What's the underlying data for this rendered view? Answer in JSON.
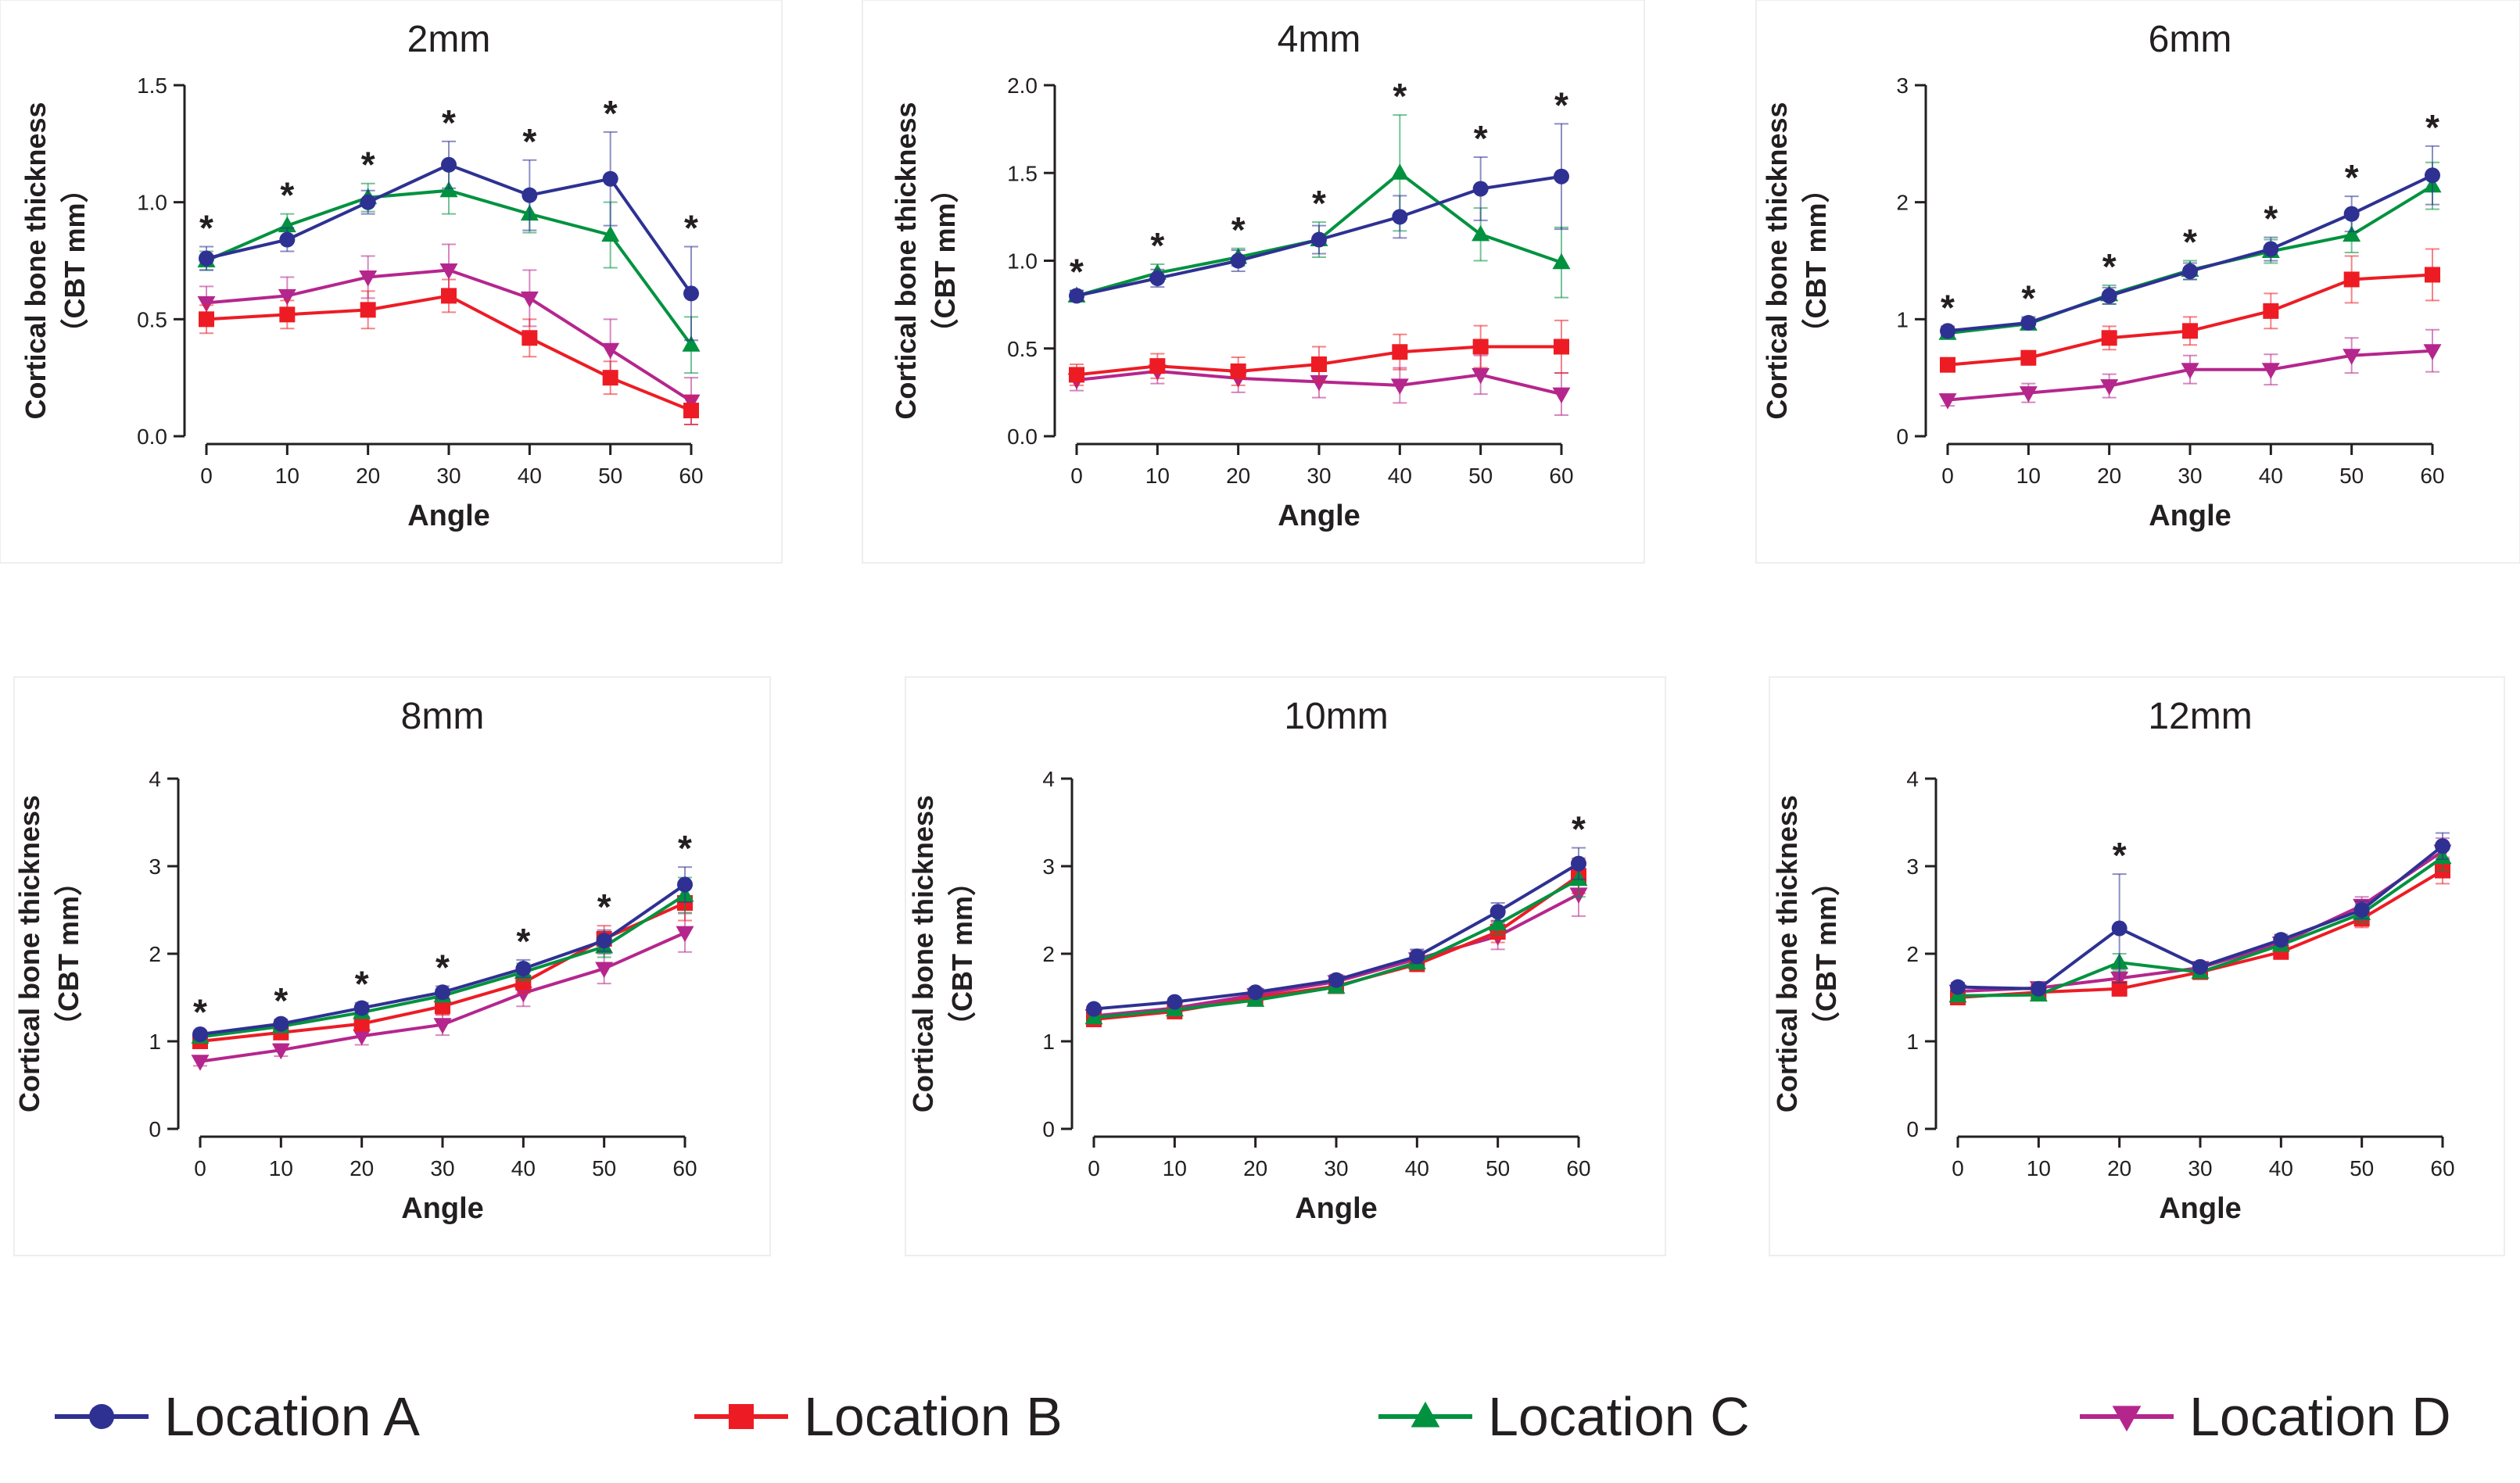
{
  "series_styles": [
    {
      "name": "Location A",
      "color": "#2e3192",
      "marker": "circle"
    },
    {
      "name": "Location B",
      "color": "#ed1c24",
      "marker": "square"
    },
    {
      "name": "Location C",
      "color": "#00923f",
      "marker": "triangle-up"
    },
    {
      "name": "Location D",
      "color": "#b5268d",
      "marker": "triangle-down"
    }
  ],
  "legend": {
    "placement": "bottom",
    "entries": [
      "Location A",
      "Location B",
      "Location C",
      "Location D"
    ]
  },
  "chart_data": [
    {
      "type": "line",
      "title": "2mm",
      "xlabel": "Angle",
      "ylabel": "Cortical bone thickness",
      "ylabel2": "（CBT mm）",
      "x": [
        0,
        10,
        20,
        30,
        40,
        50,
        60
      ],
      "ylim": [
        0,
        1.5
      ],
      "yticks": [
        0.0,
        0.5,
        1.0,
        1.5
      ],
      "yticklabels": [
        "0.0",
        "0.5",
        "1.0",
        "1.5"
      ],
      "significance": [
        "*",
        "*",
        "*",
        "*",
        "*",
        "*",
        "*"
      ],
      "series": [
        {
          "name": "Location A",
          "values": [
            0.76,
            0.84,
            1.0,
            1.16,
            1.03,
            1.1,
            0.61
          ],
          "error": [
            0.05,
            0.05,
            0.05,
            0.1,
            0.15,
            0.2,
            0.2
          ]
        },
        {
          "name": "Location B",
          "values": [
            0.5,
            0.52,
            0.54,
            0.6,
            0.42,
            0.25,
            0.11
          ],
          "error": [
            0.06,
            0.06,
            0.08,
            0.07,
            0.08,
            0.07,
            0.06
          ]
        },
        {
          "name": "Location C",
          "values": [
            0.75,
            0.9,
            1.02,
            1.05,
            0.95,
            0.86,
            0.39
          ],
          "error": [
            0.04,
            0.05,
            0.06,
            0.1,
            0.08,
            0.14,
            0.12
          ]
        },
        {
          "name": "Location D",
          "values": [
            0.57,
            0.6,
            0.68,
            0.71,
            0.59,
            0.37,
            0.15
          ],
          "error": [
            0.07,
            0.08,
            0.09,
            0.11,
            0.12,
            0.13,
            0.1
          ]
        }
      ]
    },
    {
      "type": "line",
      "title": "4mm",
      "xlabel": "Angle",
      "ylabel": "Cortical bone thickness",
      "ylabel2": "（CBT mm）",
      "x": [
        0,
        10,
        20,
        30,
        40,
        50,
        60
      ],
      "ylim": [
        0,
        2.0
      ],
      "yticks": [
        0.0,
        0.5,
        1.0,
        1.5,
        2.0
      ],
      "yticklabels": [
        "0.0",
        "0.5",
        "1.0",
        "1.5",
        "2.0"
      ],
      "significance": [
        "*",
        "*",
        "*",
        "*",
        "*",
        "*",
        "*"
      ],
      "series": [
        {
          "name": "Location A",
          "values": [
            0.8,
            0.9,
            1.0,
            1.12,
            1.25,
            1.41,
            1.48
          ],
          "error": [
            0.03,
            0.05,
            0.06,
            0.08,
            0.12,
            0.18,
            0.3
          ]
        },
        {
          "name": "Location B",
          "values": [
            0.35,
            0.4,
            0.37,
            0.41,
            0.48,
            0.51,
            0.51
          ],
          "error": [
            0.06,
            0.07,
            0.08,
            0.1,
            0.1,
            0.12,
            0.15
          ]
        },
        {
          "name": "Location C",
          "values": [
            0.8,
            0.93,
            1.02,
            1.12,
            1.5,
            1.15,
            0.99
          ],
          "error": [
            0.03,
            0.05,
            0.05,
            0.1,
            0.33,
            0.15,
            0.2
          ]
        },
        {
          "name": "Location D",
          "values": [
            0.32,
            0.37,
            0.33,
            0.31,
            0.29,
            0.35,
            0.24
          ],
          "error": [
            0.06,
            0.07,
            0.08,
            0.09,
            0.1,
            0.11,
            0.12
          ]
        }
      ]
    },
    {
      "type": "line",
      "title": "6mm",
      "xlabel": "Angle",
      "ylabel": "Cortical bone thickness",
      "ylabel2": "（CBT mm）",
      "x": [
        0,
        10,
        20,
        30,
        40,
        50,
        60
      ],
      "ylim": [
        0,
        3
      ],
      "yticks": [
        0,
        1,
        2,
        3
      ],
      "yticklabels": [
        "0",
        "1",
        "2",
        "3"
      ],
      "significance": [
        "*",
        "*",
        "*",
        "*",
        "*",
        "*",
        "*"
      ],
      "series": [
        {
          "name": "Location A",
          "values": [
            0.9,
            0.97,
            1.2,
            1.41,
            1.6,
            1.9,
            2.23
          ],
          "error": [
            0.04,
            0.05,
            0.07,
            0.07,
            0.1,
            0.15,
            0.25
          ]
        },
        {
          "name": "Location B",
          "values": [
            0.61,
            0.67,
            0.84,
            0.9,
            1.07,
            1.34,
            1.38
          ],
          "error": [
            0.05,
            0.06,
            0.1,
            0.12,
            0.15,
            0.2,
            0.22
          ]
        },
        {
          "name": "Location C",
          "values": [
            0.88,
            0.96,
            1.21,
            1.42,
            1.58,
            1.72,
            2.14
          ],
          "error": [
            0.04,
            0.05,
            0.08,
            0.08,
            0.1,
            0.15,
            0.2
          ]
        },
        {
          "name": "Location D",
          "values": [
            0.31,
            0.37,
            0.43,
            0.57,
            0.57,
            0.69,
            0.73
          ],
          "error": [
            0.05,
            0.08,
            0.1,
            0.12,
            0.13,
            0.15,
            0.18
          ]
        }
      ]
    },
    {
      "type": "line",
      "title": "8mm",
      "xlabel": "Angle",
      "ylabel": "Cortical bone thickness",
      "ylabel2": "（CBT mm）",
      "x": [
        0,
        10,
        20,
        30,
        40,
        50,
        60
      ],
      "ylim": [
        0,
        4
      ],
      "yticks": [
        0,
        1,
        2,
        3,
        4
      ],
      "yticklabels": [
        "0",
        "1",
        "2",
        "3",
        "4"
      ],
      "significance": [
        "*",
        "*",
        "*",
        "*",
        "*",
        "*",
        "*"
      ],
      "series": [
        {
          "name": "Location A",
          "values": [
            1.08,
            1.2,
            1.38,
            1.56,
            1.83,
            2.15,
            2.79
          ],
          "error": [
            0.04,
            0.05,
            0.06,
            0.07,
            0.1,
            0.12,
            0.2
          ]
        },
        {
          "name": "Location B",
          "values": [
            1.0,
            1.1,
            1.2,
            1.4,
            1.67,
            2.17,
            2.58
          ],
          "error": [
            0.05,
            0.06,
            0.08,
            0.1,
            0.12,
            0.15,
            0.2
          ]
        },
        {
          "name": "Location C",
          "values": [
            1.05,
            1.17,
            1.33,
            1.52,
            1.79,
            2.08,
            2.67
          ],
          "error": [
            0.04,
            0.05,
            0.06,
            0.07,
            0.1,
            0.12,
            0.2
          ]
        },
        {
          "name": "Location D",
          "values": [
            0.77,
            0.9,
            1.06,
            1.19,
            1.55,
            1.83,
            2.24
          ],
          "error": [
            0.05,
            0.07,
            0.1,
            0.12,
            0.15,
            0.17,
            0.22
          ]
        }
      ]
    },
    {
      "type": "line",
      "title": "10mm",
      "xlabel": "Angle",
      "ylabel": "Cortical bone thickness",
      "ylabel2": "（CBT mm）",
      "x": [
        0,
        10,
        20,
        30,
        40,
        50,
        60
      ],
      "ylim": [
        0,
        4
      ],
      "yticks": [
        0,
        1,
        2,
        3,
        4
      ],
      "yticklabels": [
        "0",
        "1",
        "2",
        "3",
        "4"
      ],
      "significance": [
        "",
        "",
        "",
        "",
        "",
        "",
        "*"
      ],
      "series": [
        {
          "name": "Location A",
          "values": [
            1.37,
            1.45,
            1.56,
            1.7,
            1.97,
            2.48,
            3.03
          ],
          "error": [
            0.03,
            0.04,
            0.05,
            0.06,
            0.08,
            0.1,
            0.18
          ]
        },
        {
          "name": "Location B",
          "values": [
            1.25,
            1.34,
            1.5,
            1.63,
            1.88,
            2.25,
            2.89
          ],
          "error": [
            0.03,
            0.04,
            0.05,
            0.06,
            0.08,
            0.12,
            0.2
          ]
        },
        {
          "name": "Location C",
          "values": [
            1.27,
            1.36,
            1.47,
            1.62,
            1.9,
            2.34,
            2.85
          ],
          "error": [
            0.03,
            0.04,
            0.05,
            0.06,
            0.08,
            0.12,
            0.2
          ]
        },
        {
          "name": "Location D",
          "values": [
            1.29,
            1.38,
            1.53,
            1.68,
            1.94,
            2.2,
            2.68
          ],
          "error": [
            0.03,
            0.04,
            0.05,
            0.06,
            0.1,
            0.15,
            0.25
          ]
        }
      ]
    },
    {
      "type": "line",
      "title": "12mm",
      "xlabel": "Angle",
      "ylabel": "Cortical bone thickness",
      "ylabel2": "（CBT mm）",
      "x": [
        0,
        10,
        20,
        30,
        40,
        50,
        60
      ],
      "ylim": [
        0,
        4
      ],
      "yticks": [
        0,
        1,
        2,
        3,
        4
      ],
      "yticklabels": [
        "0",
        "1",
        "2",
        "3",
        "4"
      ],
      "significance": [
        "",
        "",
        "*",
        "",
        "",
        "",
        ""
      ],
      "series": [
        {
          "name": "Location A",
          "values": [
            1.62,
            1.6,
            2.29,
            1.85,
            2.16,
            2.5,
            3.23
          ],
          "error": [
            0.05,
            0.05,
            0.62,
            0.05,
            0.06,
            0.1,
            0.15
          ]
        },
        {
          "name": "Location B",
          "values": [
            1.5,
            1.56,
            1.6,
            1.79,
            2.02,
            2.4,
            2.95
          ],
          "error": [
            0.04,
            0.05,
            0.08,
            0.06,
            0.06,
            0.1,
            0.15
          ]
        },
        {
          "name": "Location C",
          "values": [
            1.52,
            1.53,
            1.9,
            1.79,
            2.1,
            2.46,
            3.1
          ],
          "error": [
            0.04,
            0.05,
            0.1,
            0.06,
            0.06,
            0.1,
            0.15
          ]
        },
        {
          "name": "Location D",
          "values": [
            1.57,
            1.61,
            1.72,
            1.84,
            2.12,
            2.55,
            3.17
          ],
          "error": [
            0.04,
            0.05,
            0.1,
            0.06,
            0.06,
            0.1,
            0.15
          ]
        }
      ]
    }
  ]
}
